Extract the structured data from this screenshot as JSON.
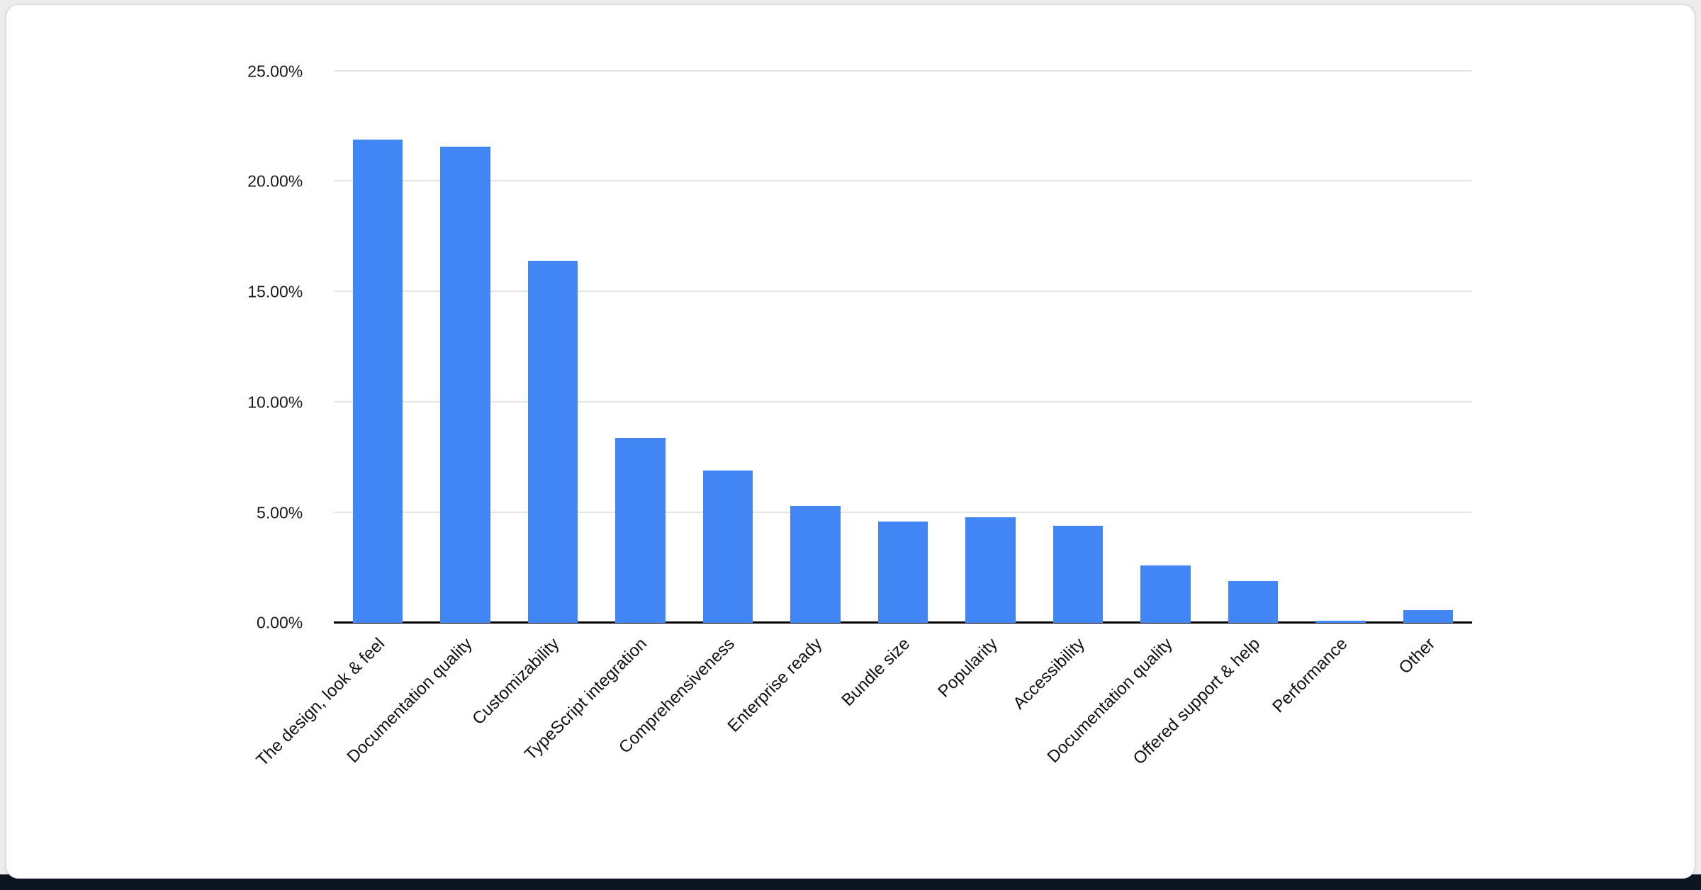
{
  "page": {
    "background_color": "#ececec",
    "card_color": "#ffffff",
    "bottom_strip_color": "#0d1422"
  },
  "chart_data": {
    "type": "bar",
    "title": "",
    "xlabel": "",
    "ylabel": "",
    "categories": [
      "The design, look & feel",
      "Documentation quality",
      "Customizability",
      "TypeScript integration",
      "Comprehensiveness",
      "Enterprise ready",
      "Bundle size",
      "Popularity",
      "Accessibility",
      "Documentation quality",
      "Offered support & help",
      "Performance",
      "Other"
    ],
    "values": [
      21.9,
      21.6,
      16.4,
      8.4,
      6.9,
      5.3,
      4.6,
      4.8,
      4.4,
      2.6,
      1.9,
      0.1,
      0.6
    ],
    "ylim": [
      0,
      25
    ],
    "y_tick_values": [
      0,
      5,
      10,
      15,
      20,
      25
    ],
    "y_tick_labels": [
      "0.00%",
      "5.00%",
      "10.00%",
      "15.00%",
      "20.00%",
      "25.00%"
    ],
    "grid": true,
    "legend": "none",
    "bar_color": "#4285f4",
    "gridline_color": "#e4e4e4",
    "axis_color": "#000000",
    "label_color": "#111111"
  }
}
